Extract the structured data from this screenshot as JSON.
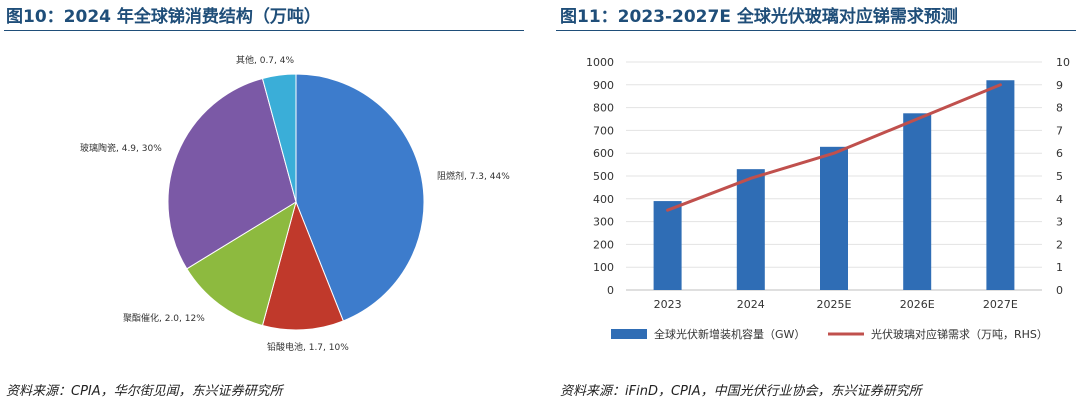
{
  "left": {
    "title": "图10：2024 年全球锑消费结构（万吨）",
    "source": "资料来源：CPIA，华尔街见闻，东兴证券研究所"
  },
  "right": {
    "title": "图11：2023-2027E 全球光伏玻璃对应锑需求预测",
    "source": "资料来源：iFinD，CPIA，中国光伏行业协会，东兴证券研究所"
  },
  "chart_data": [
    {
      "type": "pie",
      "title": "2024 年全球锑消费结构（万吨）",
      "slices": [
        {
          "label": "阻燃剂, 7.3, 44%",
          "name": "阻燃剂",
          "value": 7.3,
          "percent": 44,
          "color": "#3d7ccc"
        },
        {
          "label": "铅酸电池, 1.7, 10%",
          "name": "铅酸电池",
          "value": 1.7,
          "percent": 10,
          "color": "#c0392b"
        },
        {
          "label": "聚酯催化, 2.0, 12%",
          "name": "聚酯催化",
          "value": 2.0,
          "percent": 12,
          "color": "#8dba3f"
        },
        {
          "label": "玻璃陶瓷, 4.9, 30%",
          "name": "玻璃陶瓷",
          "value": 4.9,
          "percent": 30,
          "color": "#7b59a6"
        },
        {
          "label": "其他, 0.7, 4%",
          "name": "其他",
          "value": 0.7,
          "percent": 4,
          "color": "#3aaed8"
        }
      ]
    },
    {
      "type": "bar",
      "title": "2023-2027E 全球光伏玻璃对应锑需求预测",
      "categories": [
        "2023",
        "2024",
        "2025E",
        "2026E",
        "2027E"
      ],
      "series": [
        {
          "name": "全球光伏新增装机容量（GW）",
          "type": "bar",
          "axis": "left",
          "values": [
            390,
            530,
            628,
            775,
            920
          ],
          "color": "#2f6db5"
        },
        {
          "name": "光伏玻璃对应锑需求（万吨，RHS）",
          "type": "line",
          "axis": "right",
          "values": [
            3.5,
            4.9,
            6.0,
            7.5,
            9.0
          ],
          "color": "#c0504d"
        }
      ],
      "y_left": {
        "min": 0,
        "max": 1000,
        "step": 100
      },
      "y_right": {
        "min": 0,
        "max": 10,
        "step": 1
      },
      "grid": true,
      "legend": "bottom"
    }
  ]
}
